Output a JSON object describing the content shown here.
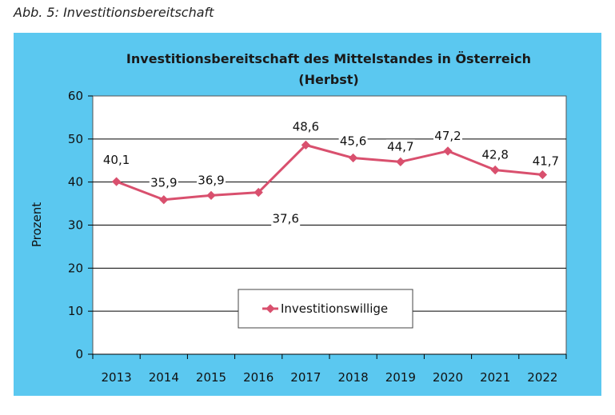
{
  "caption": "Abb. 5: Investitionsbereitschaft",
  "colors": {
    "frame": "#5bc8f0",
    "plot_bg": "#ffffff",
    "series": "#d9506e",
    "grid": "#000000"
  },
  "chart_data": {
    "type": "line",
    "title": "Investitionsbereitschaft des Mittelstandes in Österreich",
    "subtitle": "(Herbst)",
    "xlabel": "",
    "ylabel": "Prozent",
    "ylim": [
      0,
      60
    ],
    "yticks": [
      0,
      10,
      20,
      30,
      40,
      50,
      60
    ],
    "grid": true,
    "legend_position": "bottom-center",
    "categories": [
      "2013",
      "2014",
      "2015",
      "2016",
      "2017",
      "2018",
      "2019",
      "2020",
      "2021",
      "2022"
    ],
    "series": [
      {
        "name": "Investitionswillige",
        "values": [
          40.1,
          35.9,
          36.9,
          37.6,
          48.6,
          45.6,
          44.7,
          47.2,
          42.8,
          41.7
        ],
        "labels": [
          "40,1",
          "35,9",
          "36,9",
          "37,6",
          "48,6",
          "45,6",
          "44,7",
          "47,2",
          "42,8",
          "41,7"
        ]
      }
    ]
  }
}
